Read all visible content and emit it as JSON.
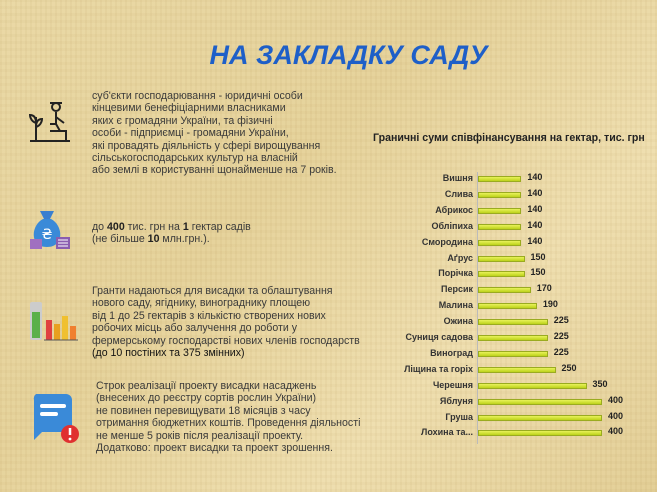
{
  "title": "НА ЗАКЛАДКУ САДУ",
  "blocks": [
    {
      "lines": [
        "суб'єкти господарювання - юридичні особи",
        "кінцевими бенефіціарними власниками",
        "яких є громадяни України, та фізичні",
        "особи - підприємці - громадяни України,",
        "які провадять діяльність у сфері вирощування",
        "сільськогосподарських культур на власній",
        "або землі в користуванні щонайменше на 7 років."
      ]
    },
    {
      "l1a": "до ",
      "l1b": "400",
      "l1c": " тис. грн на ",
      "l1d": "1",
      "l1e": " гектар садів",
      "l2a": "(не більше ",
      "l2b": "10",
      "l2c": " млн.грн.)."
    },
    {
      "lines": [
        "Гранти надаються для висадки та облаштування",
        "нового саду, ягіднику, винограднику площею",
        "від 1 до 25 гектарів з кількістю створених нових",
        "робочих місць або залучення до роботи у",
        "фермерському господарстві нових членів господарств"
      ],
      "bold_line": "(до 10 постіних та 375 змінних)"
    },
    {
      "lines": [
        "Строк реалізації проекту висадки насаджень",
        "(внесених до реєстру сортів рослин України)",
        "не повинен перевищувати 18 місяців з часу",
        "отримання бюджетних коштів. Проведення діяльності",
        "не менше 5 років після реалізації проекту.",
        "Додатково: проект висадки та проект зрошення."
      ]
    }
  ],
  "icons": [
    "farmer-icon",
    "money-bag-icon",
    "bar-chart-icon",
    "message-alert-icon"
  ],
  "chart_data": {
    "type": "bar",
    "orientation": "horizontal",
    "title": "Граничні суми співфінансування на гектар, тис. грн",
    "categories": [
      "Вишня",
      "Слива",
      "Абрикос",
      "Обліпиха",
      "Смородина",
      "Аґрус",
      "Порічка",
      "Персик",
      "Малина",
      "Ожина",
      "Суниця садова",
      "Виноград",
      "Ліщина та горіх",
      "Черешня",
      "Яблуня",
      "Груша",
      "Лохина та..."
    ],
    "values": [
      140,
      140,
      140,
      140,
      140,
      150,
      150,
      170,
      190,
      225,
      225,
      225,
      250,
      350,
      400,
      400,
      400
    ],
    "xlim": [
      0,
      400
    ],
    "grid": false,
    "legend": "none",
    "bar_color": "#c8dc28"
  }
}
